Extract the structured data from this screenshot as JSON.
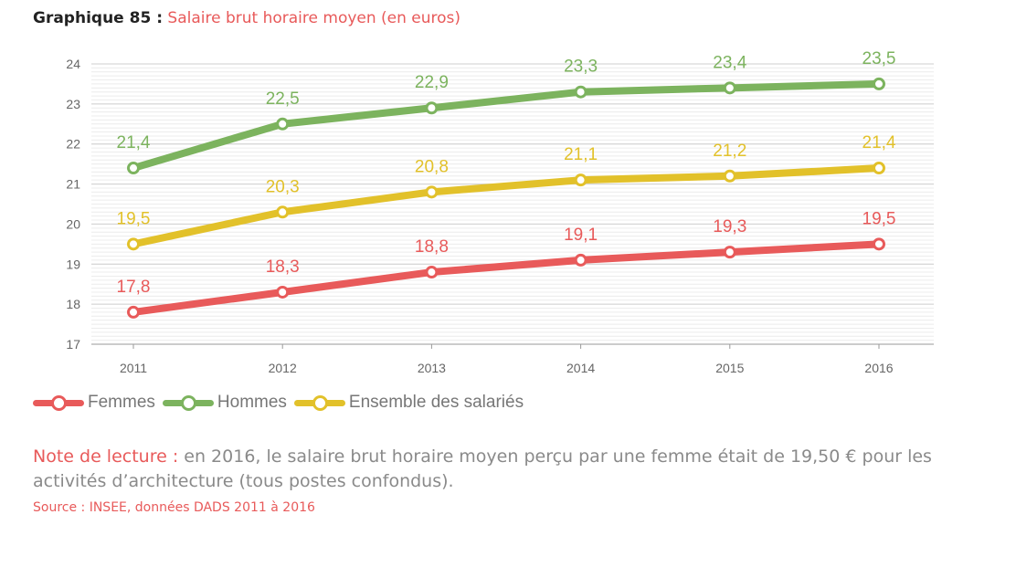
{
  "title": {
    "lead": "Graphique 85 :",
    "text": "Salaire brut horaire moyen (en euros)"
  },
  "legend": [
    {
      "label": "Femmes",
      "color": "#e85a5a"
    },
    {
      "label": "Hommes",
      "color": "#7cb35e"
    },
    {
      "label": "Ensemble des salariés",
      "color": "#e2c12a"
    }
  ],
  "note": {
    "label": "Note de lecture :",
    "text": " en 2016, le salaire brut horaire moyen perçu par une femme était de 19,50 € pour les activités d’architecture (tous postes confondus)."
  },
  "source": "Source : INSEE, données DADS 2011 à 2016",
  "chart_data": {
    "type": "line",
    "x": [
      "2011",
      "2012",
      "2013",
      "2014",
      "2015",
      "2016"
    ],
    "ylim": [
      17,
      24
    ],
    "yticks": [
      17,
      18,
      19,
      20,
      21,
      22,
      23,
      24
    ],
    "grid": true,
    "legend_position": "bottom-left",
    "series": [
      {
        "name": "Femmes",
        "color": "#e85a5a",
        "values": [
          17.8,
          18.3,
          18.8,
          19.1,
          19.3,
          19.5
        ],
        "labels": [
          "17,8",
          "18,3",
          "18,8",
          "19,1",
          "19,3",
          "19,5"
        ]
      },
      {
        "name": "Hommes",
        "color": "#7cb35e",
        "values": [
          21.4,
          22.5,
          22.9,
          23.3,
          23.4,
          23.5
        ],
        "labels": [
          "21,4",
          "22,5",
          "22,9",
          "23,3",
          "23,4",
          "23,5"
        ]
      },
      {
        "name": "Ensemble des salariés",
        "color": "#e2c12a",
        "values": [
          19.5,
          20.3,
          20.8,
          21.1,
          21.2,
          21.4
        ],
        "labels": [
          "19,5",
          "20,3",
          "20,8",
          "21,1",
          "21,2",
          "21,4"
        ]
      }
    ]
  }
}
